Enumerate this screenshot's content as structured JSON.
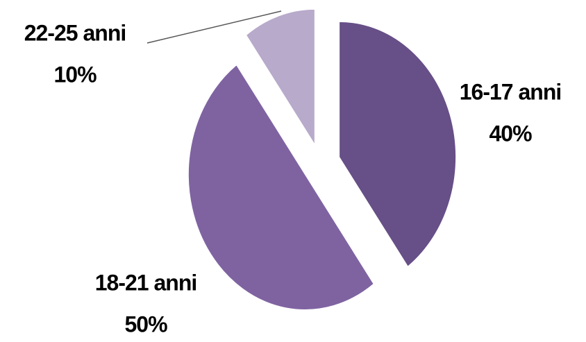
{
  "chart_data": {
    "type": "pie",
    "categories": [
      "16-17 anni",
      "18-21 anni",
      "22-25 anni"
    ],
    "values": [
      40,
      50,
      10
    ],
    "value_labels": [
      "40%",
      "50%",
      "10%"
    ],
    "colors": [
      "#674f87",
      "#7f63a1",
      "#b8aacb"
    ]
  }
}
